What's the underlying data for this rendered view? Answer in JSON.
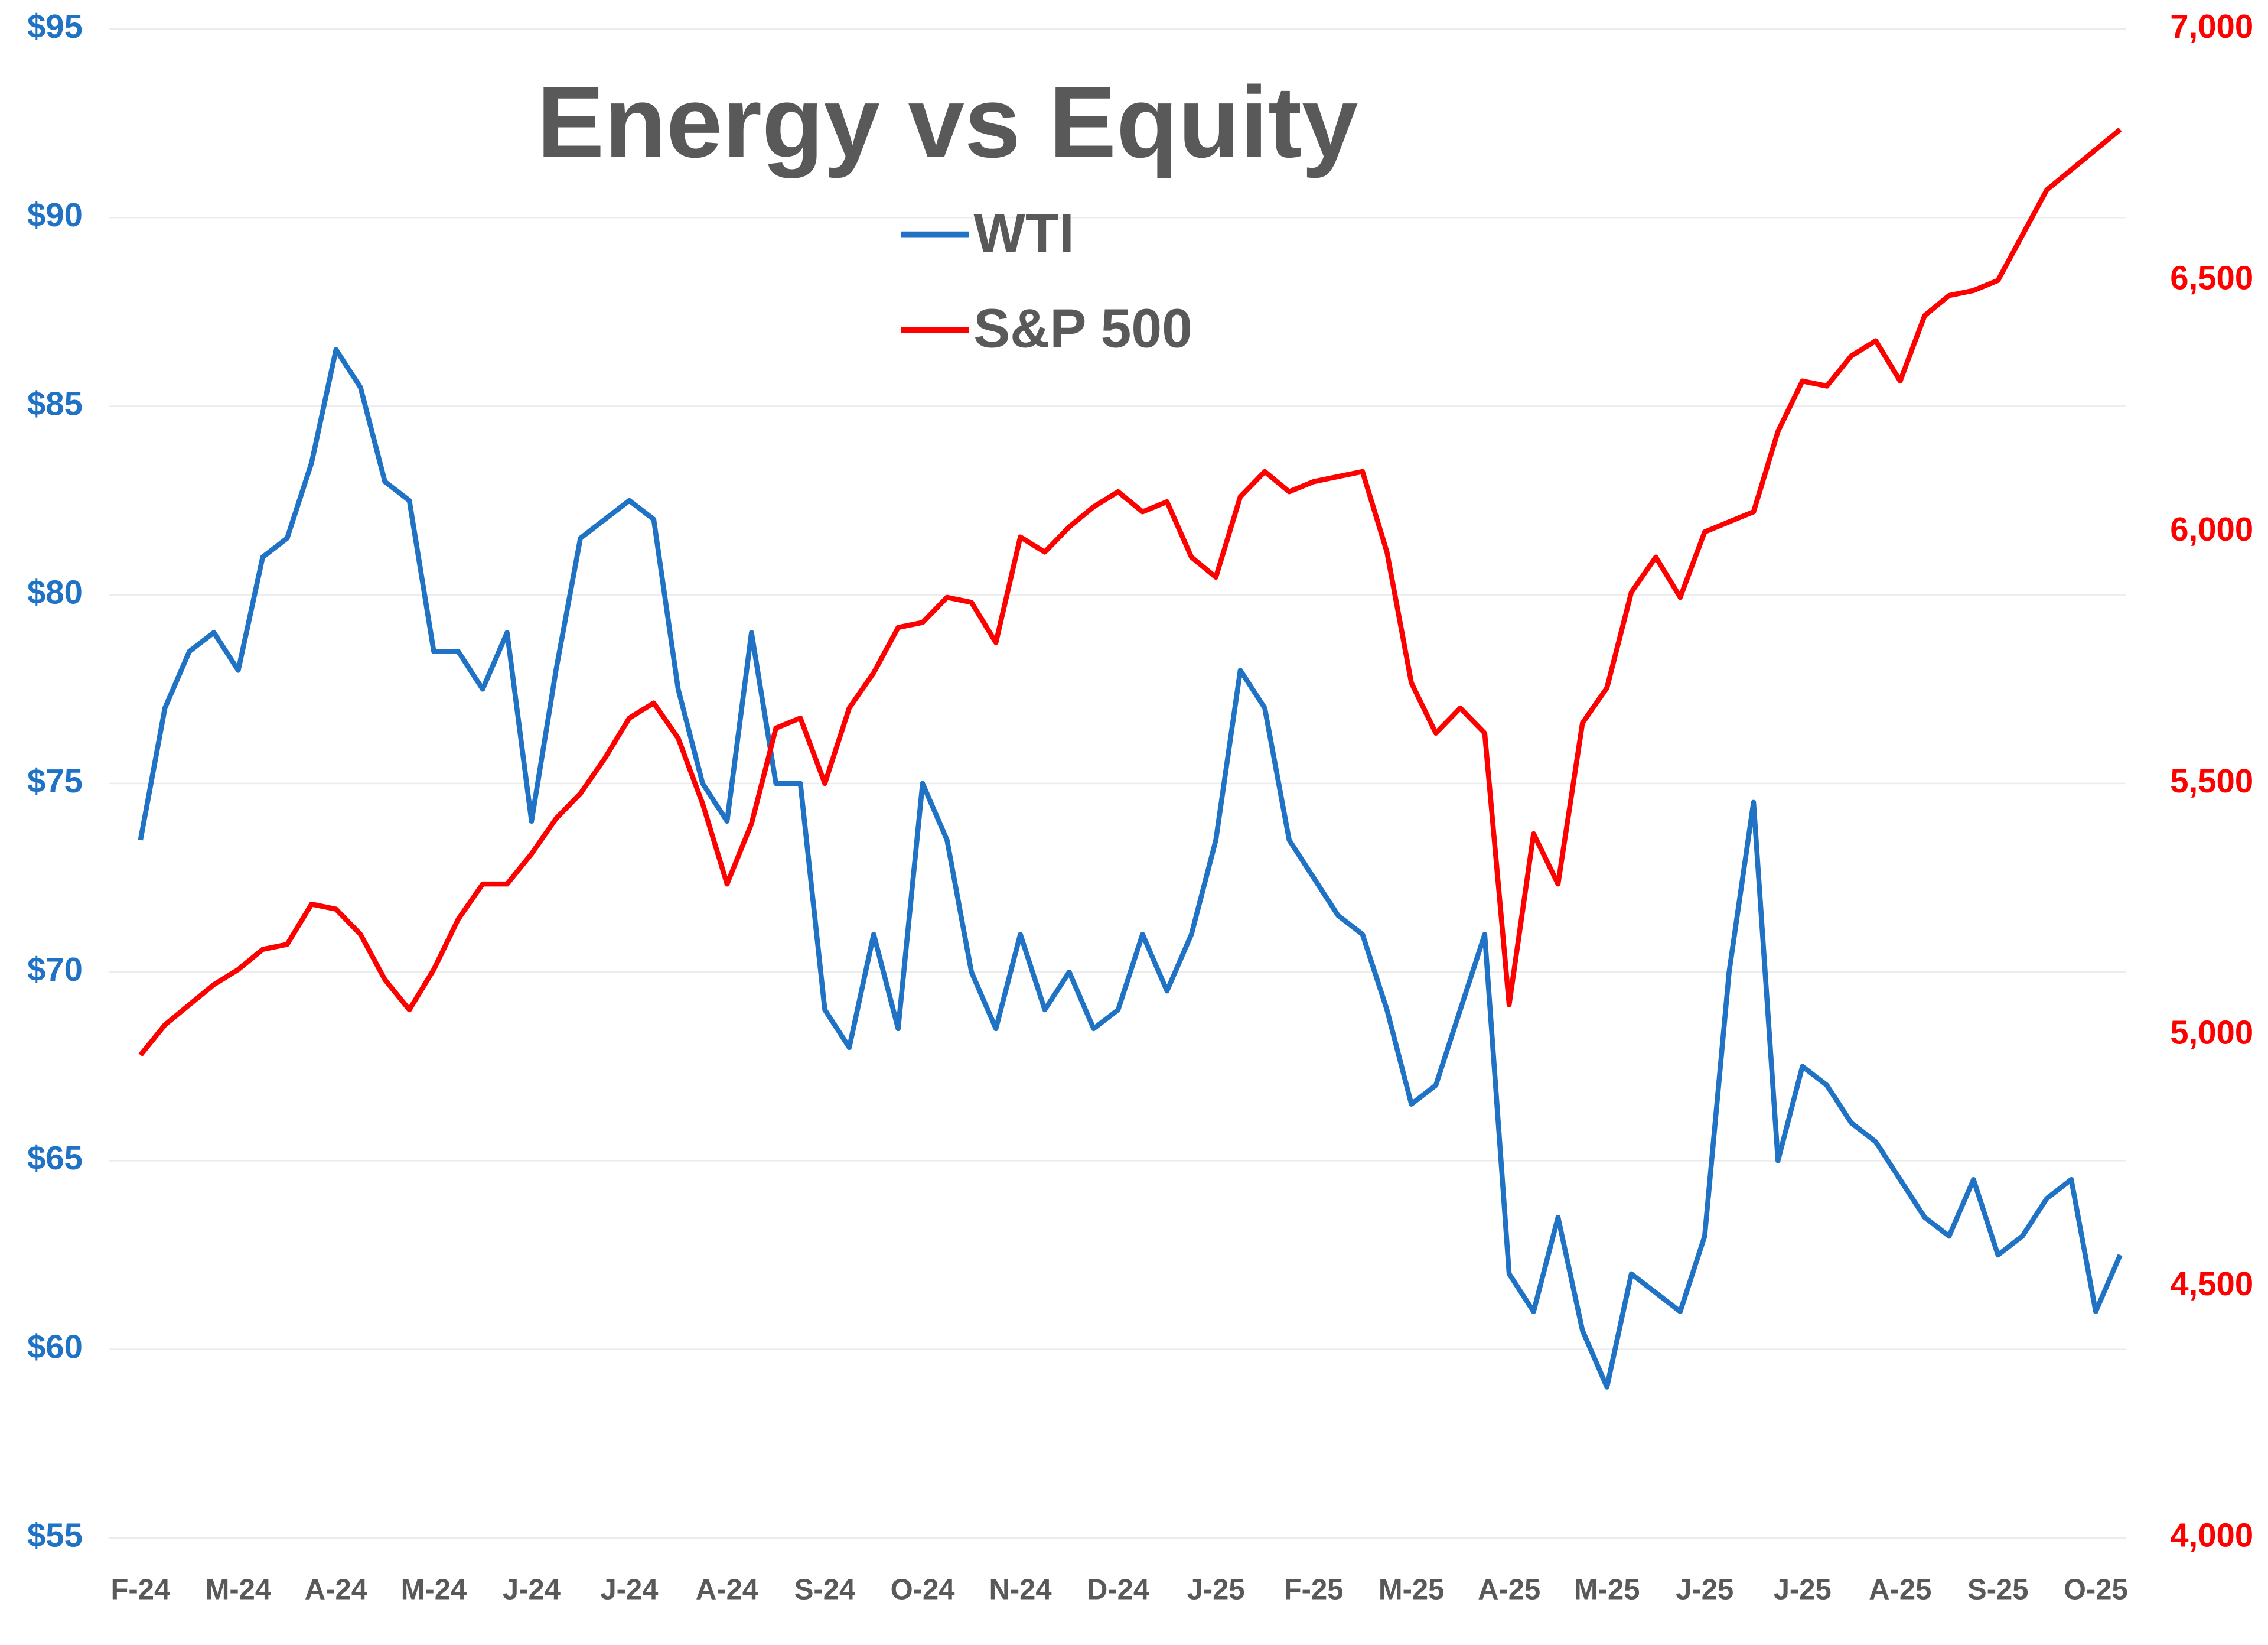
{
  "chart_data": {
    "type": "line",
    "title": "Energy vs Equity",
    "x": [
      0,
      0.25,
      0.5,
      0.75,
      1,
      1.25,
      1.5,
      1.75,
      2,
      2.25,
      2.5,
      2.75,
      3,
      3.25,
      3.5,
      3.75,
      4,
      4.25,
      4.5,
      4.75,
      5,
      5.25,
      5.5,
      5.75,
      6,
      6.25,
      6.5,
      6.75,
      7,
      7.25,
      7.5,
      7.75,
      8,
      8.25,
      8.5,
      8.75,
      9,
      9.25,
      9.5,
      9.75,
      10,
      10.25,
      10.5,
      10.75,
      11,
      11.25,
      11.5,
      11.75,
      12,
      12.25,
      12.5,
      12.75,
      13,
      13.25,
      13.5,
      13.75,
      14,
      14.25,
      14.5,
      14.75,
      15,
      15.25,
      15.5,
      15.75,
      16,
      16.25,
      16.5,
      16.75,
      17,
      17.25,
      17.5,
      17.75,
      18,
      18.25,
      18.5,
      18.75,
      19,
      19.25,
      19.5,
      19.75,
      20,
      20.25
    ],
    "series": [
      {
        "name": "WTI",
        "color": "#1f72c4",
        "values": [
          73.5,
          77,
          78.5,
          79,
          78,
          81,
          81.5,
          83.5,
          86.5,
          85.5,
          83,
          82.5,
          78.5,
          78.5,
          77.5,
          79,
          74,
          78,
          81.5,
          82,
          82.5,
          82,
          77.5,
          75,
          74,
          79,
          75,
          75,
          69,
          68,
          71,
          68.5,
          75,
          73.5,
          70,
          68.5,
          71,
          69,
          70,
          68.5,
          69,
          71,
          69.5,
          71,
          73.5,
          78,
          77,
          73.5,
          72.5,
          71.5,
          71,
          69,
          66.5,
          67,
          69,
          71,
          62,
          61,
          63.5,
          60.5,
          59,
          62,
          61.5,
          61,
          63,
          70,
          74.5,
          65,
          67.5,
          67,
          66,
          65.5,
          64.5,
          63.5,
          63,
          64.5,
          62.5,
          63,
          64,
          64.5,
          61,
          62.5
        ]
      },
      {
        "name": "S&P 500",
        "color": "#ff0000",
        "axis": "y2",
        "values": [
          4960,
          5020,
          5060,
          5100,
          5130,
          5170,
          5180,
          5260,
          5250,
          5200,
          5110,
          5050,
          5130,
          5230,
          5300,
          5300,
          5360,
          5430,
          5480,
          5550,
          5630,
          5660,
          5590,
          5460,
          5300,
          5420,
          5610,
          5630,
          5500,
          5650,
          5720,
          5810,
          5820,
          5870,
          5860,
          5780,
          5990,
          5960,
          6010,
          6050,
          6080,
          6040,
          6060,
          5950,
          5910,
          6070,
          6120,
          6080,
          6100,
          6110,
          6120,
          5960,
          5700,
          5600,
          5650,
          5600,
          5060,
          5400,
          5300,
          5620,
          5690,
          5880,
          5950,
          5870,
          6000,
          6020,
          6040,
          6200,
          6300,
          6290,
          6350,
          6380,
          6300,
          6430,
          6470,
          6480,
          6500,
          6590,
          6680,
          6720,
          6760,
          6800
        ]
      }
    ],
    "xlim": [
      0,
      20.25
    ],
    "xticks": [
      {
        "value": 0,
        "label": "F-24"
      },
      {
        "value": 1,
        "label": "M-24"
      },
      {
        "value": 2,
        "label": "A-24"
      },
      {
        "value": 3,
        "label": "M-24"
      },
      {
        "value": 4,
        "label": "J-24"
      },
      {
        "value": 5,
        "label": "J-24"
      },
      {
        "value": 6,
        "label": "A-24"
      },
      {
        "value": 7,
        "label": "S-24"
      },
      {
        "value": 8,
        "label": "O-24"
      },
      {
        "value": 9,
        "label": "N-24"
      },
      {
        "value": 10,
        "label": "D-24"
      },
      {
        "value": 11,
        "label": "J-25"
      },
      {
        "value": 12,
        "label": "F-25"
      },
      {
        "value": 13,
        "label": "M-25"
      },
      {
        "value": 14,
        "label": "A-25"
      },
      {
        "value": 15,
        "label": "M-25"
      },
      {
        "value": 16,
        "label": "J-25"
      },
      {
        "value": 17,
        "label": "J-25"
      },
      {
        "value": 18,
        "label": "A-25"
      },
      {
        "value": 19,
        "label": "S-25"
      },
      {
        "value": 20,
        "label": "O-25"
      }
    ],
    "ylim": [
      55,
      95
    ],
    "yticks": [
      {
        "value": 55,
        "label": "$55"
      },
      {
        "value": 60,
        "label": "$60"
      },
      {
        "value": 65,
        "label": "$65"
      },
      {
        "value": 70,
        "label": "$70"
      },
      {
        "value": 75,
        "label": "$75"
      },
      {
        "value": 80,
        "label": "$80"
      },
      {
        "value": 85,
        "label": "$85"
      },
      {
        "value": 90,
        "label": "$90"
      },
      {
        "value": 95,
        "label": "$95"
      }
    ],
    "y2lim": [
      4000,
      7000
    ],
    "y2ticks": [
      {
        "value": 4000,
        "label": "4,000"
      },
      {
        "value": 4500,
        "label": "4,500"
      },
      {
        "value": 5000,
        "label": "5,000"
      },
      {
        "value": 5500,
        "label": "5,500"
      },
      {
        "value": 6000,
        "label": "6,000"
      },
      {
        "value": 6500,
        "label": "6,500"
      },
      {
        "value": 7000,
        "label": "7,000"
      }
    ],
    "grid": true
  }
}
